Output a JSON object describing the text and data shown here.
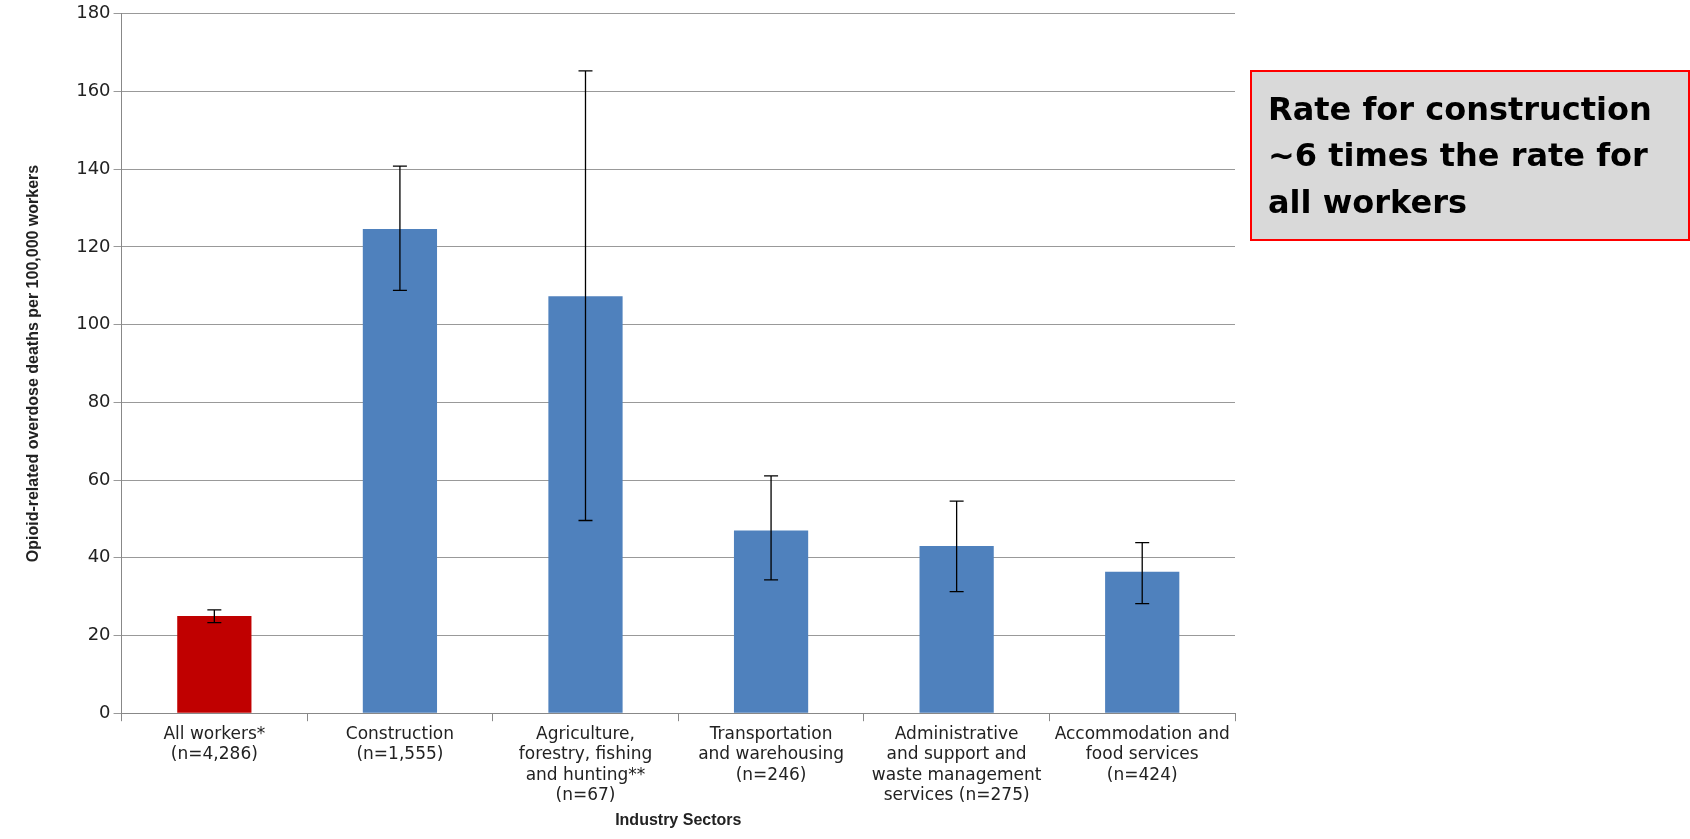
{
  "chart_data": {
    "type": "bar",
    "xlabel": "Industry Sectors",
    "ylabel": "Opioid-related overdose deaths per 100,000 workers",
    "categories": [
      "All workers* (n=4,286)",
      "Construction (n=1,555)",
      "Agriculture, forestry, fishing and hunting** (n=67)",
      "Transportation and warehousing (n=246)",
      "Administrative and support and waste management services (n=275)",
      "Accommodation and food services (n=424)"
    ],
    "values": [
      25,
      124.6,
      107.3,
      47,
      43,
      36.4
    ],
    "colors": [
      "#c00000",
      "#4f81bd",
      "#4f81bd",
      "#4f81bd",
      "#4f81bd",
      "#4f81bd"
    ],
    "errors": [
      [
        23.3,
        26.6
      ],
      [
        108.8,
        140.8
      ],
      [
        49.6,
        165.3
      ],
      [
        34.3,
        61.1
      ],
      [
        31.3,
        54.6
      ],
      [
        28.2,
        43.9
      ]
    ],
    "ylim": [
      0,
      180
    ],
    "yticks": [
      0,
      20,
      40,
      60,
      80,
      100,
      120,
      140,
      160,
      180
    ],
    "grid": "y",
    "annotations": [
      "Rate for construction ~6 times the rate for all workers"
    ]
  }
}
